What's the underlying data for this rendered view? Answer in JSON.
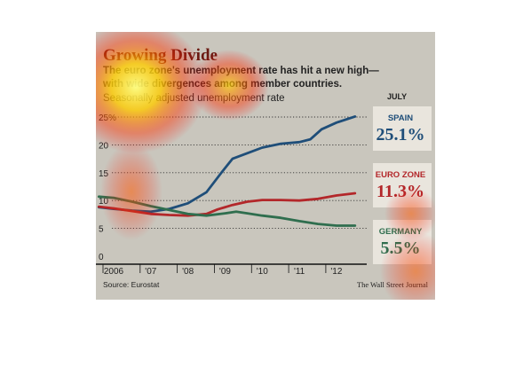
{
  "title": "Growing Divide",
  "subtitle_lines": [
    "The euro zone's unemployment rate has hit a new high—",
    "with wide divergences among member countries.",
    "Seasonally adjusted unemployment rate"
  ],
  "latest_month_label": "JULY",
  "source": "Source: Eurostat",
  "credit": "The Wall Street Journal",
  "callouts": {
    "spain": {
      "name": "SPAIN",
      "value": "25.1%",
      "color": "#1f4e79"
    },
    "eurozone": {
      "name": "EURO ZONE",
      "value": "11.3%",
      "color": "#b3272a"
    },
    "germany": {
      "name": "GERMANY",
      "value": "5.5%",
      "color": "#2f6e4e"
    }
  },
  "chart_data": {
    "type": "line",
    "ylim": [
      0,
      25
    ],
    "yticks": [
      "0",
      "5",
      "10",
      "15",
      "20",
      "25%"
    ],
    "ytick_values": [
      0,
      5,
      10,
      15,
      20,
      25
    ],
    "xlim": [
      2006,
      2012.6
    ],
    "xticks": [
      "2006",
      "'07",
      "'08",
      "'09",
      "'10",
      "'11",
      "'12"
    ],
    "xtick_values": [
      2006,
      2007,
      2008,
      2009,
      2010,
      2011,
      2012
    ],
    "grid": true,
    "series": [
      {
        "name": "SPAIN",
        "color": "#1f4e79",
        "points": [
          [
            2005.6,
            8.8
          ],
          [
            2006.0,
            8.5
          ],
          [
            2006.5,
            8.2
          ],
          [
            2007.0,
            8.0
          ],
          [
            2007.5,
            8.5
          ],
          [
            2008.0,
            9.5
          ],
          [
            2008.5,
            11.5
          ],
          [
            2008.9,
            15.0
          ],
          [
            2009.2,
            17.5
          ],
          [
            2009.6,
            18.5
          ],
          [
            2010.0,
            19.5
          ],
          [
            2010.5,
            20.2
          ],
          [
            2011.0,
            20.5
          ],
          [
            2011.3,
            21.0
          ],
          [
            2011.6,
            22.8
          ],
          [
            2012.0,
            24.0
          ],
          [
            2012.5,
            25.1
          ]
        ]
      },
      {
        "name": "EURO ZONE",
        "color": "#b3272a",
        "points": [
          [
            2005.6,
            8.9
          ],
          [
            2006.0,
            8.6
          ],
          [
            2006.5,
            8.1
          ],
          [
            2007.0,
            7.6
          ],
          [
            2007.5,
            7.4
          ],
          [
            2008.0,
            7.3
          ],
          [
            2008.5,
            7.6
          ],
          [
            2008.8,
            8.4
          ],
          [
            2009.2,
            9.2
          ],
          [
            2009.6,
            9.8
          ],
          [
            2010.0,
            10.1
          ],
          [
            2010.5,
            10.1
          ],
          [
            2011.0,
            10.0
          ],
          [
            2011.5,
            10.3
          ],
          [
            2012.0,
            10.9
          ],
          [
            2012.5,
            11.3
          ]
        ]
      },
      {
        "name": "GERMANY",
        "color": "#2f6e4e",
        "points": [
          [
            2005.6,
            10.7
          ],
          [
            2006.0,
            10.5
          ],
          [
            2006.5,
            9.8
          ],
          [
            2007.0,
            9.0
          ],
          [
            2007.5,
            8.3
          ],
          [
            2008.0,
            7.6
          ],
          [
            2008.5,
            7.3
          ],
          [
            2009.0,
            7.7
          ],
          [
            2009.3,
            8.0
          ],
          [
            2009.6,
            7.7
          ],
          [
            2010.0,
            7.3
          ],
          [
            2010.5,
            6.9
          ],
          [
            2011.0,
            6.3
          ],
          [
            2011.5,
            5.8
          ],
          [
            2012.0,
            5.5
          ],
          [
            2012.5,
            5.5
          ]
        ]
      }
    ]
  }
}
